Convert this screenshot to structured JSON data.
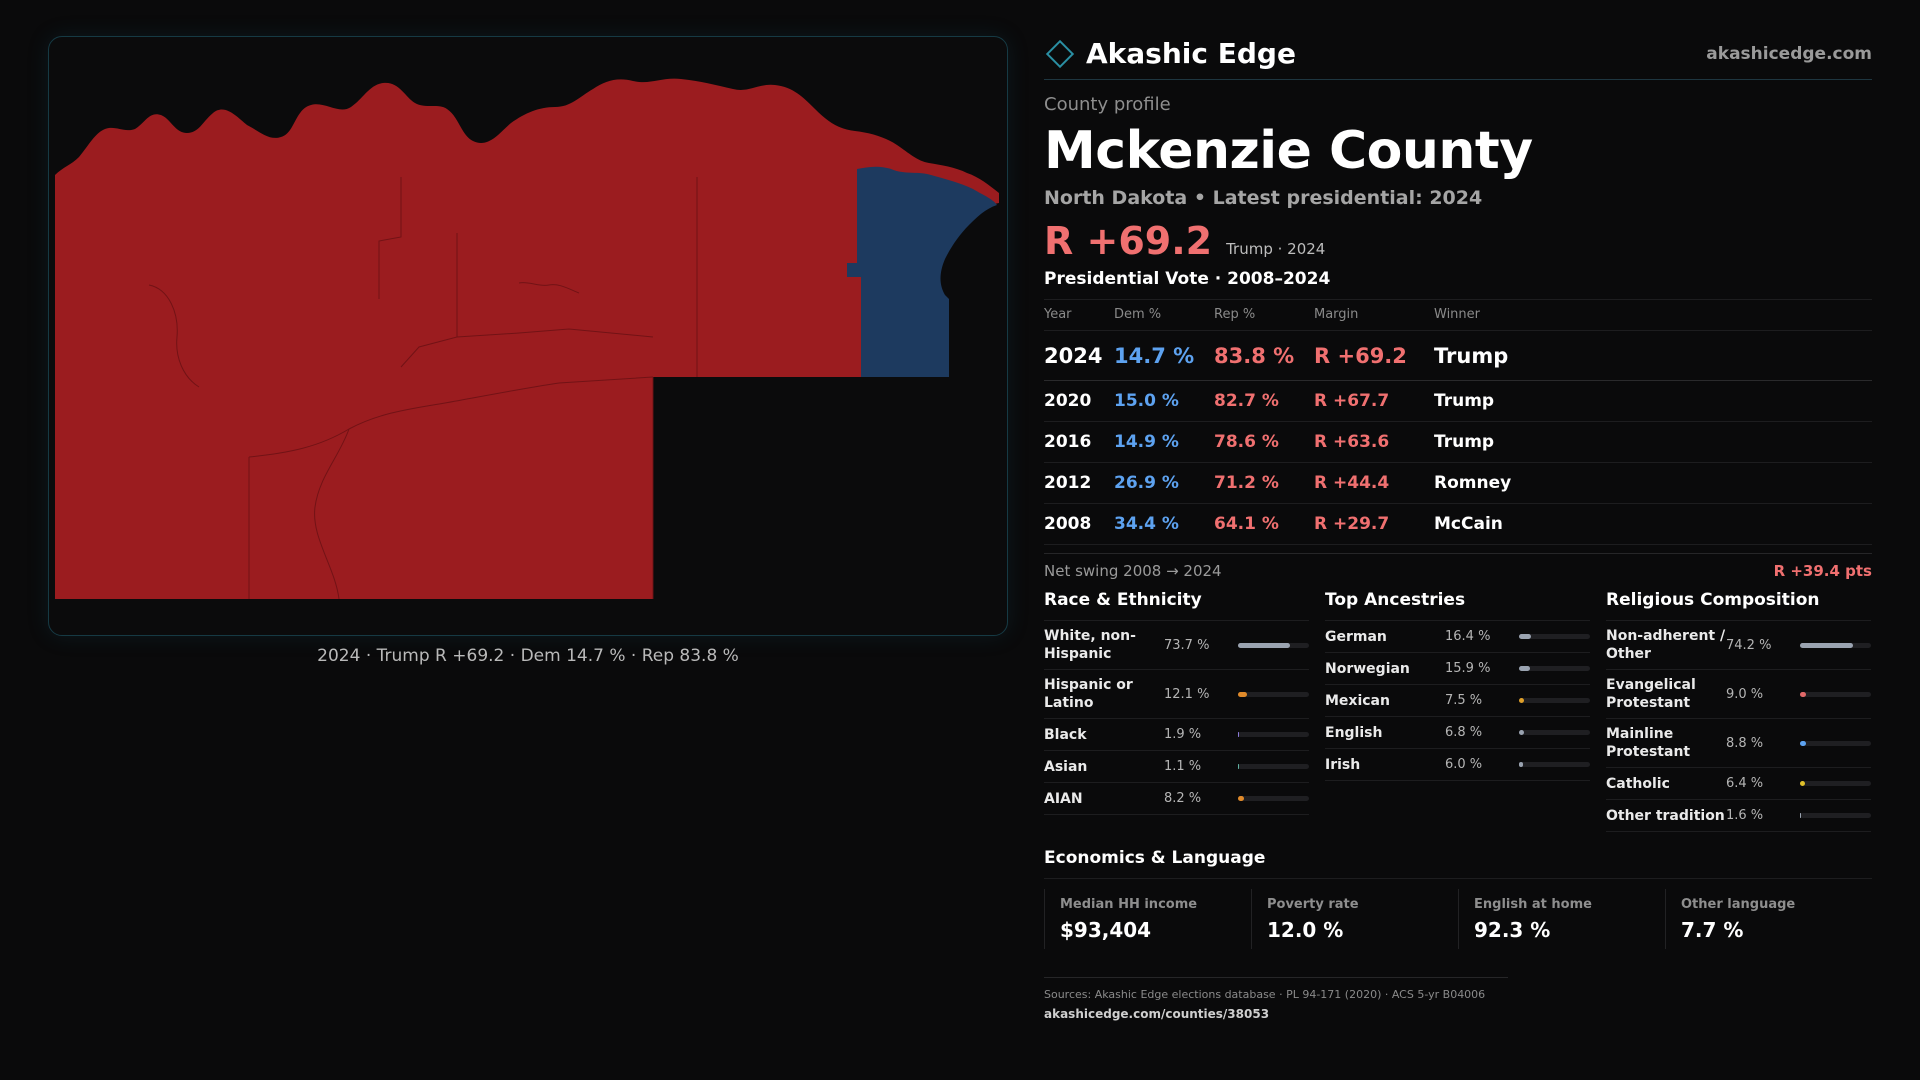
{
  "map": {
    "caption": "2024 · Trump R +69.2 · Dem 14.7 % · Rep 83.8 %",
    "rep_color": "#9b1c1f",
    "dem_color": "#1d3a5f"
  },
  "brand": {
    "name": "Akashic Edge",
    "url": "akashicedge.com"
  },
  "profile": {
    "eyebrow": "County profile",
    "name": "Mckenzie County",
    "subtitle": "North Dakota • Latest presidential: 2024",
    "margin": "R +69.2",
    "margin_note": "Trump · 2024"
  },
  "votes": {
    "title": "Presidential Vote · 2008–2024",
    "headers": {
      "year": "Year",
      "dem": "Dem %",
      "rep": "Rep %",
      "margin": "Margin",
      "winner": "Winner"
    },
    "rows": [
      {
        "year": "2024",
        "dem": "14.7 %",
        "rep": "83.8 %",
        "margin": "R +69.2",
        "winner": "Trump"
      },
      {
        "year": "2020",
        "dem": "15.0 %",
        "rep": "82.7 %",
        "margin": "R +67.7",
        "winner": "Trump"
      },
      {
        "year": "2016",
        "dem": "14.9 %",
        "rep": "78.6 %",
        "margin": "R +63.6",
        "winner": "Trump"
      },
      {
        "year": "2012",
        "dem": "26.9 %",
        "rep": "71.2 %",
        "margin": "R +44.4",
        "winner": "Romney"
      },
      {
        "year": "2008",
        "dem": "34.4 %",
        "rep": "64.1 %",
        "margin": "R +29.7",
        "winner": "McCain"
      }
    ],
    "swing_label": "Net swing 2008 → 2024",
    "swing_value": "R +39.4 pts"
  },
  "race": {
    "title": "Race & Ethnicity",
    "items": [
      {
        "label": "White, non-Hispanic",
        "pct": "73.7 %",
        "value": 73.7,
        "color": "#9aa3b0"
      },
      {
        "label": "Hispanic or Latino",
        "pct": "12.1 %",
        "value": 12.1,
        "color": "#e08a2a"
      },
      {
        "label": "Black",
        "pct": "1.9 %",
        "value": 1.9,
        "color": "#8a7ad8"
      },
      {
        "label": "Asian",
        "pct": "1.1 %",
        "value": 1.1,
        "color": "#5fb0a0"
      },
      {
        "label": "AIAN",
        "pct": "8.2 %",
        "value": 8.2,
        "color": "#e08a2a"
      }
    ]
  },
  "ancestry": {
    "title": "Top Ancestries",
    "items": [
      {
        "label": "German",
        "pct": "16.4 %",
        "value": 16.4,
        "color": "#9aa3b0"
      },
      {
        "label": "Norwegian",
        "pct": "15.9 %",
        "value": 15.9,
        "color": "#9aa3b0"
      },
      {
        "label": "Mexican",
        "pct": "7.5 %",
        "value": 7.5,
        "color": "#e0a02a"
      },
      {
        "label": "English",
        "pct": "6.8 %",
        "value": 6.8,
        "color": "#9aa3b0"
      },
      {
        "label": "Irish",
        "pct": "6.0 %",
        "value": 6.0,
        "color": "#9aa3b0"
      }
    ]
  },
  "religion": {
    "title": "Religious Composition",
    "items": [
      {
        "label": "Non-adherent / Other",
        "pct": "74.2 %",
        "value": 74.2,
        "color": "#9aa3b0"
      },
      {
        "label": "Evangelical Protestant",
        "pct": "9.0 %",
        "value": 9.0,
        "color": "#e06868"
      },
      {
        "label": "Mainline Protestant",
        "pct": "8.8 %",
        "value": 8.8,
        "color": "#5da2f0"
      },
      {
        "label": "Catholic",
        "pct": "6.4 %",
        "value": 6.4,
        "color": "#e0c02a"
      },
      {
        "label": "Other tradition",
        "pct": "1.6 %",
        "value": 1.6,
        "color": "#9aa3b0"
      }
    ]
  },
  "economics": {
    "title": "Economics & Language",
    "cards": [
      {
        "label": "Median HH income",
        "value": "$93,404"
      },
      {
        "label": "Poverty rate",
        "value": "12.0 %"
      },
      {
        "label": "English at home",
        "value": "92.3 %"
      },
      {
        "label": "Other language",
        "value": "7.7 %"
      }
    ]
  },
  "sources": {
    "text": "Sources: Akashic Edge elections database · PL 94-171 (2020) · ACS 5-yr B04006",
    "url": "akashicedge.com/counties/38053"
  }
}
